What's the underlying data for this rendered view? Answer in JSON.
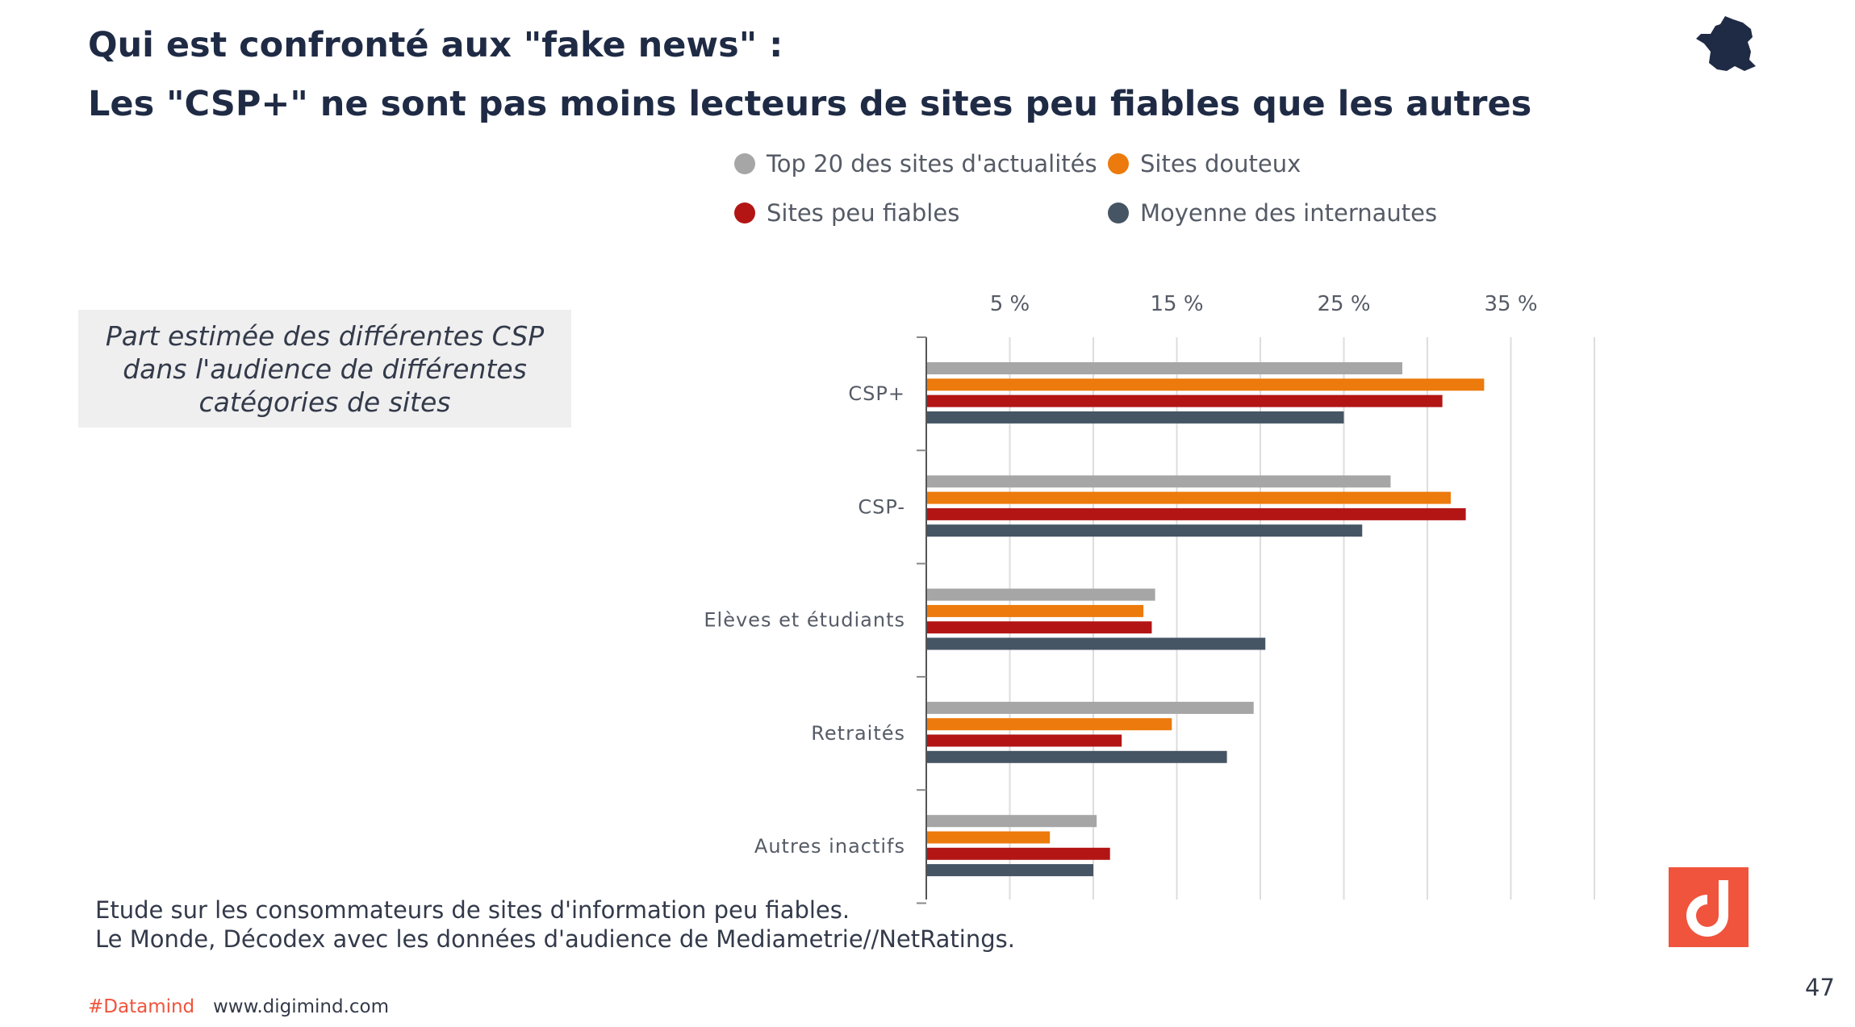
{
  "header": {
    "title_line1": "Qui est confronté aux \"fake news\" :",
    "title_line2": "Les \"CSP+\" ne sont pas moins lecteurs de sites peu fiables que les autres",
    "country_icon": "france-map-icon"
  },
  "note": {
    "text": "Part estimée  des différentes CSP dans l'audience de différentes catégories de sites"
  },
  "source": {
    "line1": "Etude sur les consommateurs de sites d'information peu fiables.",
    "line2": "Le Monde, Décodex avec les données d'audience de Mediametrie//NetRatings."
  },
  "footer": {
    "hashtag": "#Datamind",
    "url": "www.digimind.com",
    "page_number": "47",
    "logo_icon": "digimind-logo-icon"
  },
  "colors": {
    "title": "#1f2b45",
    "accent": "#f0543c"
  },
  "chart_data": {
    "type": "bar",
    "orientation": "horizontal",
    "title": "",
    "xlabel": "",
    "ylabel": "",
    "xlim": [
      0,
      40
    ],
    "tick_values": [
      5,
      15,
      25,
      35
    ],
    "tick_labels": [
      "5 %",
      "15 %",
      "25 %",
      "35 %"
    ],
    "grid": true,
    "legend_position": "top",
    "categories": [
      "CSP+",
      "CSP-",
      "Elèves et étudiants",
      "Retraités",
      "Autres inactifs"
    ],
    "series": [
      {
        "name": "Top 20 des sites d'actualités",
        "color": "#a6a6a6",
        "values": [
          28.5,
          27.8,
          13.7,
          19.6,
          10.2
        ]
      },
      {
        "name": "Sites douteux",
        "color": "#ec7a0c",
        "values": [
          33.4,
          31.4,
          13.0,
          14.7,
          7.4
        ]
      },
      {
        "name": "Sites peu fiables",
        "color": "#b31515",
        "values": [
          30.9,
          32.3,
          13.5,
          11.7,
          11.0
        ]
      },
      {
        "name": "Moyenne des internautes",
        "color": "#465564",
        "values": [
          25.0,
          26.1,
          20.3,
          18.0,
          10.0
        ]
      }
    ]
  }
}
